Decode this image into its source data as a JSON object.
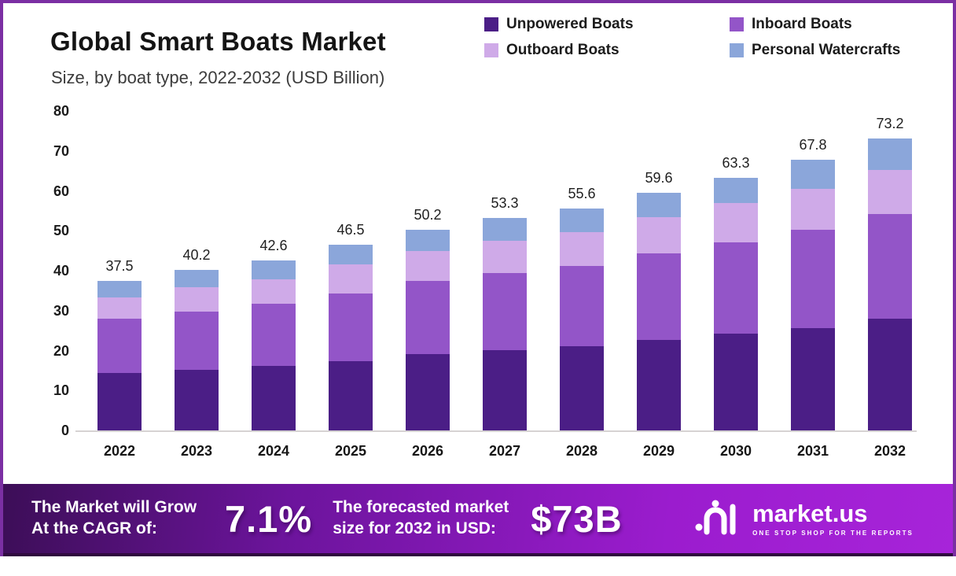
{
  "title": "Global Smart Boats Market",
  "subtitle": "Size, by boat type, 2022-2032 (USD Billion)",
  "legend": [
    {
      "label": "Unpowered Boats",
      "color": "#4b1e86"
    },
    {
      "label": "Inboard Boats",
      "color": "#9355c8"
    },
    {
      "label": "Outboard Boats",
      "color": "#cfaae8"
    },
    {
      "label": "Personal Watercrafts",
      "color": "#8ba6da"
    }
  ],
  "chart_data": {
    "type": "bar",
    "stacked": true,
    "title": "Global Smart Boats Market Size, by boat type, 2022-2032 (USD Billion)",
    "categories": [
      "2022",
      "2023",
      "2024",
      "2025",
      "2026",
      "2027",
      "2028",
      "2029",
      "2030",
      "2031",
      "2032"
    ],
    "series": [
      {
        "name": "Unpowered Boats",
        "color": "#4b1e86",
        "values": [
          14.4,
          15.2,
          16.1,
          17.3,
          19.1,
          20.1,
          21.1,
          22.6,
          24.3,
          25.7,
          28.0
        ]
      },
      {
        "name": "Inboard Boats",
        "color": "#9355c8",
        "values": [
          13.6,
          14.6,
          15.7,
          17.0,
          18.3,
          19.3,
          20.1,
          21.7,
          22.8,
          24.5,
          26.1
        ]
      },
      {
        "name": "Outboard Boats",
        "color": "#cfaae8",
        "values": [
          5.3,
          6.0,
          6.1,
          7.3,
          7.6,
          8.2,
          8.4,
          9.2,
          9.8,
          10.4,
          11.2
        ]
      },
      {
        "name": "Personal Watercrafts",
        "color": "#8ba6da",
        "values": [
          4.2,
          4.4,
          4.7,
          4.9,
          5.2,
          5.7,
          6.0,
          6.1,
          6.4,
          7.2,
          7.9
        ]
      }
    ],
    "totals": [
      37.5,
      40.2,
      42.6,
      46.5,
      50.2,
      53.3,
      55.6,
      59.6,
      63.3,
      67.8,
      73.2
    ],
    "xlabel": "",
    "ylabel": "",
    "ylim": [
      0,
      80
    ],
    "yticks": [
      0,
      10,
      20,
      30,
      40,
      50,
      60,
      70,
      80
    ],
    "grid": false,
    "legend_position": "top-right"
  },
  "banner": {
    "cagr_line1": "The Market will Grow",
    "cagr_line2": "At the CAGR of:",
    "cagr_value": "7.1%",
    "forecast_line1": "The forecasted market",
    "forecast_line2": "size for 2032 in USD:",
    "forecast_value": "$73B",
    "brand_name": "market.us",
    "brand_tagline": "ONE STOP SHOP FOR THE REPORTS"
  },
  "colors": {
    "frame_border": "#7b2fa3",
    "banner_gradient_start": "#3c0e57",
    "banner_gradient_end": "#a724d9",
    "axis_line": "#d6d3d3",
    "text_dark": "#1a1a1a"
  }
}
